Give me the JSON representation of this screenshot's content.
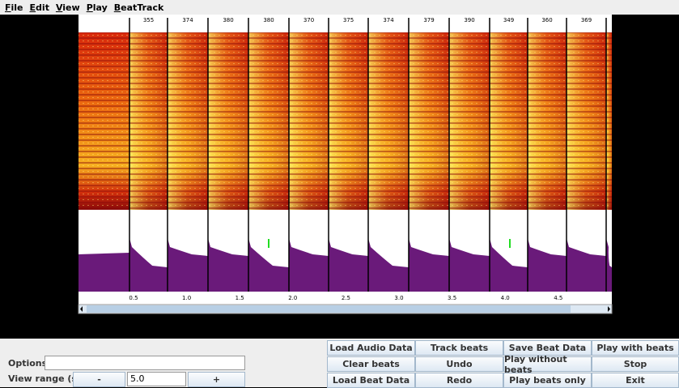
{
  "menu": [
    "File",
    "Edit",
    "View",
    "Play",
    "BeatTrack"
  ],
  "beat_intervals": [
    "355",
    "374",
    "380",
    "380",
    "370",
    "375",
    "374",
    "379",
    "390",
    "349",
    "360",
    "369"
  ],
  "time_labels": [
    "0.5",
    "1.0",
    "1.5",
    "2.0",
    "2.5",
    "3.0",
    "3.5",
    "4.0",
    "4.5"
  ],
  "buttons": [
    "Load Audio Data",
    "Track beats",
    "Save Beat Data",
    "Play with beats",
    "Clear beats",
    "Undo",
    "Play without beats",
    "Stop",
    "Load Beat Data",
    "Redo",
    "Play beats only",
    "Exit"
  ],
  "options": {
    "label": "Options:"
  },
  "view_range": {
    "label": "View range (s):",
    "minus": "-",
    "value": "5.0",
    "plus": "+"
  }
}
